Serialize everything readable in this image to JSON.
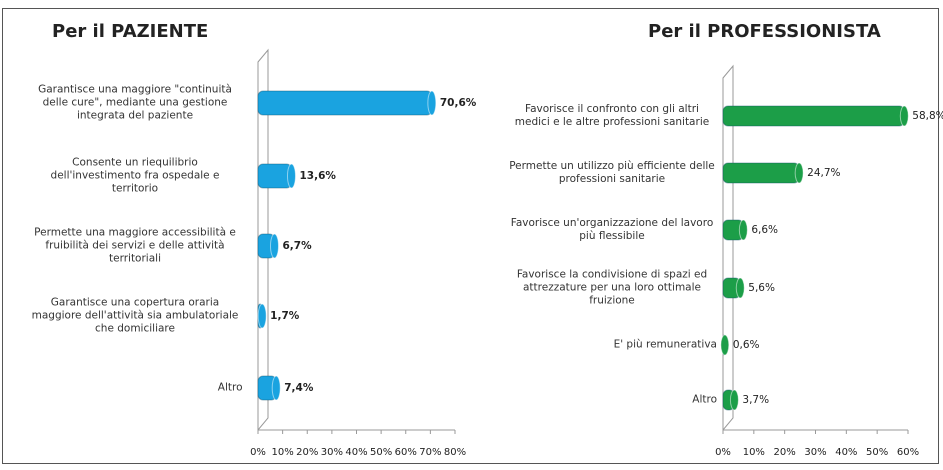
{
  "chart_data": [
    {
      "type": "bar",
      "orientation": "horizontal",
      "title": "Per il PAZIENTE",
      "color": "#1aa3e0",
      "categories": [
        "Garantisce una maggiore \"continuità delle cure\", mediante una gestione integrata del paziente",
        "Consente un riequilibrio dell'investimento fra ospedale e territorio",
        "Permette una maggiore accessibilità e fruibilità dei servizi e delle attività territoriali",
        "Garantisce una copertura oraria maggiore dell'attività sia ambulatoriale che domiciliare",
        "Altro"
      ],
      "values": [
        70.6,
        13.6,
        6.7,
        1.7,
        7.4
      ],
      "value_labels": [
        "70,6%",
        "13,6%",
        "6,7%",
        "1,7%",
        "7,4%"
      ],
      "xlim": [
        0,
        80
      ],
      "xticks": [
        {
          "value": 0,
          "label": "0%"
        },
        {
          "value": 10,
          "label": "10%"
        },
        {
          "value": 20,
          "label": "20%"
        },
        {
          "value": 30,
          "label": "30%"
        },
        {
          "value": 40,
          "label": "40%"
        },
        {
          "value": 50,
          "label": "50%"
        },
        {
          "value": 60,
          "label": "60%"
        },
        {
          "value": 70,
          "label": "70%"
        },
        {
          "value": 80,
          "label": "80%"
        }
      ]
    },
    {
      "type": "bar",
      "orientation": "horizontal",
      "title": "Per il PROFESSIONISTA",
      "color": "#1c9e48",
      "categories": [
        "Favorisce il confronto con gli altri medici e le altre professioni sanitarie",
        "Permette un utilizzo più efficiente delle professioni sanitarie",
        "Favorisce un'organizzazione del lavoro più flessibile",
        "Favorisce la condivisione di spazi ed attrezzature per una loro ottimale fruizione",
        "E' più remunerativa",
        "Altro"
      ],
      "values": [
        58.8,
        24.7,
        6.6,
        5.6,
        0.6,
        3.7
      ],
      "value_labels": [
        "58,8%",
        "24,7%",
        "6,6%",
        "5,6%",
        "0,6%",
        "3,7%"
      ],
      "xlim": [
        0,
        60
      ],
      "xticks": [
        {
          "value": 0,
          "label": "0%"
        },
        {
          "value": 10,
          "label": "10%"
        },
        {
          "value": 20,
          "label": "20%"
        },
        {
          "value": 30,
          "label": "30%"
        },
        {
          "value": 40,
          "label": "40%"
        },
        {
          "value": 50,
          "label": "50%"
        },
        {
          "value": 60,
          "label": "60%"
        }
      ]
    }
  ]
}
